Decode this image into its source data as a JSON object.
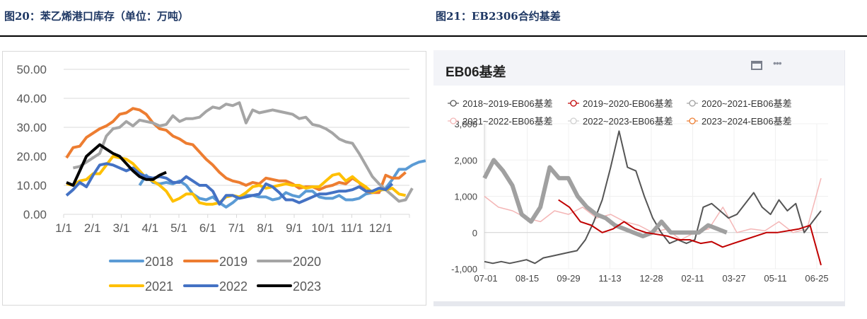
{
  "figures": {
    "left_title": "图20：苯乙烯港口库存（单位：万吨）",
    "right_title": "图21：EB2306合约基差"
  },
  "right_panel": {
    "title": "EB06基差",
    "window_icon": "window-icon",
    "more_icon": "more-icon"
  },
  "chart_data": [
    {
      "type": "line",
      "title": "苯乙烯港口库存（单位：万吨）",
      "xlabel": "",
      "ylabel": "万吨",
      "ylim": [
        0,
        50
      ],
      "yticks": [
        "0.00",
        "10.00",
        "20.00",
        "30.00",
        "40.00",
        "50.00"
      ],
      "categories": [
        "1/1",
        "2/1",
        "3/1",
        "4/1",
        "5/1",
        "6/1",
        "7/1",
        "8/1",
        "9/1",
        "10/1",
        "11/1",
        "12/1"
      ],
      "legend_position": "bottom",
      "grid": true,
      "series": [
        {
          "name": "2018",
          "color": "#5b9bd5",
          "start_week": 11,
          "values": [
            10.0,
            13.5,
            11.0,
            10.5,
            11.0,
            10.5,
            11.5,
            10.0,
            7.0,
            5.5,
            5.0,
            6.0,
            4.0,
            2.5,
            4.0,
            6.0,
            6.5,
            6.5,
            6.0,
            6.0,
            5.0,
            5.5,
            7.5,
            6.5,
            6.0,
            8.0,
            8.0,
            6.0,
            5.5,
            5.5,
            6.5,
            5.0,
            5.0,
            5.5,
            7.0,
            7.5,
            8.0,
            9.0,
            12.0,
            15.5,
            15.5,
            17.0,
            18.0,
            18.5
          ]
        },
        {
          "name": "2019",
          "color": "#ed7d31",
          "start_week": 0,
          "values": [
            19.5,
            23.0,
            23.5,
            26.5,
            28.0,
            29.5,
            30.5,
            32.0,
            34.5,
            35.0,
            36.5,
            36.0,
            34.5,
            31.5,
            29.5,
            29.0,
            27.0,
            26.0,
            24.5,
            24.0,
            21.5,
            19.0,
            17.0,
            14.5,
            12.5,
            11.5,
            11.0,
            10.0,
            11.0,
            10.5,
            12.5,
            12.0,
            11.5,
            11.5,
            10.5,
            9.0,
            9.5,
            9.5,
            8.5,
            9.5,
            10.0,
            11.0,
            10.5,
            12.5,
            11.0,
            8.0,
            7.5,
            7.5,
            13.5,
            12.5,
            12.5,
            14.5
          ]
        },
        {
          "name": "2020",
          "color": "#a5a5a5",
          "start_week": 1,
          "values": [
            16.0,
            16.5,
            18.0,
            19.5,
            21.0,
            27.0,
            29.5,
            30.0,
            32.0,
            30.5,
            32.5,
            32.0,
            31.5,
            30.5,
            31.0,
            34.0,
            32.0,
            33.0,
            33.0,
            33.5,
            35.5,
            37.0,
            36.5,
            38.0,
            37.5,
            38.5,
            31.5,
            36.0,
            35.0,
            35.5,
            36.0,
            35.5,
            35.0,
            34.5,
            33.0,
            33.5,
            31.0,
            30.5,
            29.5,
            28.0,
            26.0,
            25.0,
            24.5,
            21.0,
            17.0,
            13.0,
            10.5,
            8.5,
            6.5,
            4.5,
            5.0,
            9.0
          ]
        },
        {
          "name": "2021",
          "color": "#ffc000",
          "start_week": 0,
          "values": [
            10.5,
            10.0,
            11.5,
            12.0,
            14.0,
            14.0,
            17.0,
            20.0,
            19.5,
            19.0,
            17.5,
            15.0,
            12.5,
            11.5,
            10.0,
            8.0,
            4.5,
            5.5,
            7.0,
            7.0,
            4.0,
            3.5,
            3.5,
            4.0,
            6.0,
            6.5,
            6.0,
            7.5,
            9.5,
            10.0,
            9.0,
            9.5,
            10.0,
            10.5,
            10.0,
            10.0,
            9.0,
            9.5,
            9.5,
            11.5,
            13.5,
            14.0,
            11.5,
            13.0,
            11.0,
            9.5,
            7.5,
            8.5,
            8.5,
            9.0,
            7.0,
            6.5
          ]
        },
        {
          "name": "2022",
          "color": "#4472c4",
          "start_week": 0,
          "values": [
            6.5,
            8.5,
            11.0,
            9.5,
            13.5,
            17.0,
            17.5,
            17.0,
            16.0,
            15.0,
            16.0,
            14.0,
            13.0,
            12.5,
            13.0,
            12.5,
            11.0,
            11.0,
            13.0,
            11.5,
            10.0,
            10.0,
            8.0,
            3.5,
            6.5,
            6.5,
            5.5,
            6.0,
            6.5,
            7.0,
            10.5,
            9.5,
            7.5,
            5.0,
            5.0,
            4.0,
            5.0,
            6.0,
            7.0,
            7.0,
            7.5,
            8.0,
            8.0,
            8.5,
            9.5,
            8.0,
            8.0,
            9.0,
            8.5,
            10.5
          ]
        },
        {
          "name": "2023",
          "color": "#000000",
          "start_week": 0,
          "values": [
            11.0,
            10.0,
            15.0,
            20.0,
            22.0,
            24.0,
            22.5,
            21.0,
            20.0,
            17.5,
            15.0,
            13.0,
            12.0,
            12.0,
            13.5,
            14.5
          ]
        }
      ]
    },
    {
      "type": "line",
      "title": "EB06基差",
      "xlabel": "",
      "ylabel": "",
      "ylim": [
        -1000,
        3000
      ],
      "yticks": [
        "-1,000",
        "0",
        "1,000",
        "2,000",
        "3,000"
      ],
      "categories": [
        "07-01",
        "08-15",
        "09-29",
        "11-13",
        "12-28",
        "02-11",
        "03-27",
        "05-11",
        "06-25"
      ],
      "legend_position": "top",
      "grid": true,
      "series": [
        {
          "name": "2018~2019-EB06基差",
          "color": "#555555",
          "values": [
            -800,
            -850,
            -800,
            -850,
            -800,
            -750,
            -850,
            -700,
            -650,
            -600,
            -550,
            -500,
            -200,
            300,
            900,
            1800,
            2800,
            1800,
            1700,
            1000,
            400,
            0,
            -300,
            -200,
            -300,
            -200,
            700,
            800,
            600,
            400,
            500,
            800,
            1100,
            700,
            500,
            900,
            600,
            800,
            0,
            300,
            600
          ]
        },
        {
          "name": "2019~2020-EB06基差",
          "color": "#c00000",
          "values": [
            900,
            700,
            300,
            200,
            0,
            100,
            300,
            100,
            0,
            -50,
            -100,
            -200,
            -200,
            -300,
            -250,
            -400,
            -300,
            -200,
            -100,
            0,
            0,
            50,
            100,
            200,
            -900
          ]
        },
        {
          "name": "2020~2021-EB06基差",
          "color": "#a0a0a0",
          "values": [
            1500,
            2000,
            1700,
            1300,
            500,
            300,
            700,
            1800,
            1500,
            1500,
            1000,
            700,
            500,
            400,
            200,
            100,
            0,
            -100,
            0,
            300,
            0,
            0,
            0,
            0,
            200,
            100,
            0
          ]
        },
        {
          "name": "2021~2022-EB06基差",
          "color": "#f4b6b6",
          "values": [
            1000,
            700,
            600,
            400,
            300,
            600,
            500,
            700,
            400,
            500,
            300,
            200,
            0,
            100,
            -200,
            0,
            100,
            700,
            0,
            100,
            50,
            300,
            0,
            100,
            1500
          ]
        },
        {
          "name": "2022~2023-EB06基差",
          "color": "#cfcfcf",
          "values": []
        },
        {
          "name": "2023~2024-EB06基差",
          "color": "#ed7d31",
          "values": []
        }
      ]
    }
  ]
}
